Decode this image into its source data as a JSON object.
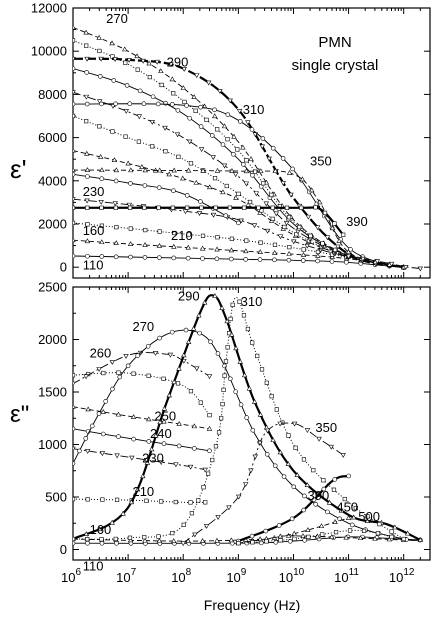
{
  "chart_data": [
    {
      "panel": "upper",
      "type": "line",
      "ylabel": "ε'",
      "xscale": "log",
      "xlim": [
        1000000,
        3000000000000
      ],
      "ylim": [
        -500,
        12000
      ],
      "yticks": [
        0,
        2000,
        4000,
        6000,
        8000,
        10000,
        12000
      ],
      "ytick_labels": [
        "0",
        "2000",
        "4000",
        "6000",
        "8000",
        "10000",
        "12000"
      ],
      "annotation": [
        "PMN",
        "single crystal"
      ],
      "series": [
        {
          "name": "110",
          "label_pos": [
            1500000.0,
            -100
          ],
          "points": [
            [
              1000000.0,
              520
            ],
            [
              10000000.0,
              470
            ],
            [
              100000000.0,
              420
            ],
            [
              1000000000.0,
              370
            ],
            [
              10000000000.0,
              320
            ],
            [
              100000000000.0,
              220
            ],
            [
              1000000000000.0,
              -20
            ]
          ]
        },
        {
          "name": "160",
          "label_pos": [
            1500000.0,
            1500
          ],
          "points": [
            [
              1000000.0,
              1250
            ],
            [
              10000000.0,
              1080
            ],
            [
              100000000.0,
              920
            ],
            [
              1000000000.0,
              760
            ],
            [
              10000000000.0,
              600
            ],
            [
              100000000000.0,
              390
            ],
            [
              1000000000000.0,
              0
            ]
          ]
        },
        {
          "name": "210",
          "label_pos": [
            60000000.0,
            1250
          ],
          "points": [
            [
              1000000.0,
              2050
            ],
            [
              10000000.0,
              1800
            ],
            [
              100000000.0,
              1540
            ],
            [
              1000000000.0,
              1280
            ],
            [
              10000000000.0,
              900
            ],
            [
              100000000000.0,
              450
            ],
            [
              1000000000000.0,
              0
            ]
          ]
        },
        {
          "name": "230",
          "label_pos": [
            1500000.0,
            3300
          ],
          "points": [
            [
              1000000.0,
              3150
            ],
            [
              10000000.0,
              2900
            ],
            [
              100000000.0,
              2600
            ],
            [
              1000000000.0,
              2200
            ],
            [
              10000000000.0,
              1200
            ],
            [
              100000000000.0,
              470
            ],
            [
              1000000000000.0,
              0
            ]
          ]
        },
        {
          "name": "",
          "points": [
            [
              1000000.0,
              4300
            ],
            [
              10000000.0,
              3900
            ],
            [
              100000000.0,
              3400
            ],
            [
              1000000000.0,
              2050
            ]
          ]
        },
        {
          "name": "",
          "points": [
            [
              1000000.0,
              5400
            ],
            [
              10000000.0,
              4800
            ],
            [
              100000000.0,
              4100
            ],
            [
              1000000000.0,
              3150
            ],
            [
              10000000000.0,
              1500
            ],
            [
              100000000000.0,
              480
            ],
            [
              1000000000000.0,
              0
            ]
          ]
        },
        {
          "name": "",
          "points": [
            [
              1000000.0,
              7000
            ],
            [
              10000000.0,
              6000
            ],
            [
              100000000.0,
              5000
            ],
            [
              1000000000.0,
              3400
            ],
            [
              10000000000.0,
              1600
            ],
            [
              100000000000.0,
              480
            ],
            [
              1000000000000.0,
              0
            ]
          ]
        },
        {
          "name": "",
          "points": [
            [
              1000000.0,
              8100
            ],
            [
              10000000.0,
              7200
            ],
            [
              100000000.0,
              6000
            ],
            [
              1000000000.0,
              4200
            ],
            [
              10000000000.0,
              1800
            ],
            [
              100000000000.0,
              500
            ],
            [
              1000000000000.0,
              0
            ]
          ]
        },
        {
          "name": "",
          "points": [
            [
              1000000.0,
              9200
            ],
            [
              10000000.0,
              8400
            ],
            [
              100000000.0,
              7100
            ],
            [
              1000000000.0,
              5000
            ],
            [
              10000000000.0,
              2000
            ],
            [
              100000000000.0,
              520
            ],
            [
              1000000000000.0,
              0
            ]
          ]
        },
        {
          "name": "270",
          "label_pos": [
            4000000.0,
            11300
          ],
          "points": [
            [
              1000000.0,
              11100
            ],
            [
              10000000.0,
              10000
            ],
            [
              100000000.0,
              8300
            ],
            [
              1000000000.0,
              5800
            ],
            [
              10000000000.0,
              2200
            ],
            [
              100000000000.0,
              540
            ],
            [
              1000000000000.0,
              0
            ]
          ]
        },
        {
          "name": "",
          "points": [
            [
              1000000.0,
              10500
            ],
            [
              10000000.0,
              9400
            ],
            [
              100000000.0,
              7700
            ],
            [
              1000000000.0,
              5400
            ],
            [
              10000000000.0,
              2100
            ],
            [
              100000000000.0,
              530
            ],
            [
              1000000000000.0,
              0
            ]
          ]
        },
        {
          "name": "290",
          "label_pos": [
            50000000.0,
            9300
          ],
          "points": [
            [
              1000000.0,
              9650
            ],
            [
              10000000.0,
              9600
            ],
            [
              100000000.0,
              9200
            ],
            [
              1000000000.0,
              7300
            ],
            [
              10000000000.0,
              3200
            ],
            [
              100000000000.0,
              600
            ],
            [
              1000000000000.0,
              0
            ]
          ]
        },
        {
          "name": "310",
          "label_pos": [
            1200000000.0,
            7100
          ],
          "points": [
            [
              1000000.0,
              7550
            ],
            [
              100000000.0,
              7500
            ],
            [
              1000000000.0,
              6800
            ],
            [
              10000000000.0,
              4500
            ],
            [
              100000000000.0,
              900
            ],
            [
              1000000000000.0,
              0
            ]
          ]
        },
        {
          "name": "350",
          "label_pos": [
            20000000000.0,
            4700
          ],
          "points": [
            [
              1000000.0,
              4500
            ],
            [
              1000000000.0,
              4450
            ],
            [
              10000000000.0,
              4300
            ],
            [
              30000000000.0,
              3000
            ],
            [
              100000000000.0,
              700
            ],
            [
              1000000000000.0,
              0
            ]
          ]
        },
        {
          "name": "390",
          "label_pos": [
            90000000000.0,
            1900
          ],
          "points": [
            [
              1000000.0,
              2750
            ],
            [
              10000000000.0,
              2750
            ],
            [
              30000000000.0,
              2700
            ],
            [
              80000000000.0,
              1500
            ]
          ]
        },
        {
          "name": "",
          "points": [
            [
              100000000000.0,
              500
            ],
            [
              500000000000.0,
              200
            ],
            [
              1000000000000.0,
              30
            ],
            [
              2000000000000.0,
              -60
            ]
          ]
        }
      ]
    },
    {
      "panel": "lower",
      "type": "line",
      "ylabel": "ε\"",
      "xlabel": "Frequency  (Hz)",
      "xscale": "log",
      "xlim": [
        1000000,
        3000000000000
      ],
      "ylim": [
        -100,
        2500
      ],
      "xticks": [
        1000000,
        10000000,
        100000000,
        1000000000,
        10000000000,
        100000000000,
        1000000000000
      ],
      "xtick_labels": [
        [
          "10",
          "6"
        ],
        [
          "10",
          "7"
        ],
        [
          "10",
          "8"
        ],
        [
          "10",
          "9"
        ],
        [
          "10",
          "10"
        ],
        [
          "10",
          "11"
        ],
        [
          "10",
          "12"
        ]
      ],
      "yticks": [
        0,
        500,
        1000,
        1500,
        2000,
        2500
      ],
      "ytick_labels": [
        "0",
        "500",
        "1000",
        "1500",
        "2000",
        "2500"
      ],
      "series": [
        {
          "name": "110",
          "label_pos": [
            1500000.0,
            -200
          ],
          "points": [
            [
              1000000.0,
              60
            ],
            [
              1000000000.0,
              60
            ],
            [
              10000000000.0,
              80
            ],
            [
              100000000000.0,
              120
            ],
            [
              800000000000.0,
              100
            ],
            [
              2000000000000.0,
              90
            ]
          ]
        },
        {
          "name": "160",
          "label_pos": [
            2000000.0,
            150
          ],
          "points": [
            [
              1000000.0,
              100
            ],
            [
              100000000.0,
              80
            ],
            [
              3000000000.0,
              100
            ],
            [
              10000000000.0,
              130
            ],
            [
              1000000000000.0,
              90
            ]
          ]
        },
        {
          "name": "210",
          "label_pos": [
            12000000.0,
            510
          ],
          "points": [
            [
              1000000.0,
              480
            ],
            [
              10000000.0,
              470
            ],
            [
              100000000.0,
              450
            ],
            [
              250000000.0,
              450
            ]
          ]
        },
        {
          "name": "230",
          "label_pos": [
            18000000.0,
            830
          ],
          "points": [
            [
              1000000.0,
              960
            ],
            [
              10000000.0,
              880
            ],
            [
              100000000.0,
              800
            ],
            [
              250000000.0,
              760
            ]
          ]
        },
        {
          "name": "240",
          "label_pos": [
            25000000.0,
            1060
          ],
          "points": [
            [
              1000000.0,
              1150
            ],
            [
              10000000.0,
              1060
            ],
            [
              100000000.0,
              980
            ],
            [
              300000000.0,
              940
            ]
          ]
        },
        {
          "name": "250",
          "label_pos": [
            30000000.0,
            1230
          ],
          "points": [
            [
              1000000.0,
              1360
            ],
            [
              10000000.0,
              1270
            ],
            [
              100000000.0,
              1190
            ],
            [
              300000000.0,
              1150
            ]
          ]
        },
        {
          "name": "260",
          "label_pos": [
            2000000.0,
            1830
          ],
          "points": [
            [
              1000000.0,
              1660
            ],
            [
              10000000.0,
              1680
            ],
            [
              100000000.0,
              1560
            ],
            [
              300000000.0,
              1280
            ]
          ]
        },
        {
          "name": "",
          "points": [
            [
              1000000.0,
              1580
            ],
            [
              10000000.0,
              1850
            ],
            [
              50000000.0,
              1860
            ],
            [
              100000000.0,
              1800
            ],
            [
              300000000.0,
              1650
            ]
          ]
        },
        {
          "name": "270",
          "label_pos": [
            12000000.0,
            2080
          ],
          "points": [
            [
              1000000.0,
              820
            ],
            [
              3000000.0,
              1300
            ],
            [
              10000000.0,
              1750
            ],
            [
              50000000.0,
              2050
            ],
            [
              200000000.0,
              2060
            ],
            [
              500000000.0,
              1800
            ],
            [
              2000000000.0,
              1100
            ],
            [
              10000000000.0,
              600
            ],
            [
              100000000000.0,
              250
            ],
            [
              1000000000000.0,
              100
            ],
            [
              2000000000000.0,
              90
            ]
          ]
        },
        {
          "name": "290",
          "label_pos": [
            80000000.0,
            2370
          ],
          "points": [
            [
              1000000.0,
              100
            ],
            [
              10000000.0,
              400
            ],
            [
              50000000.0,
              1400
            ],
            [
              200000000.0,
              2250
            ],
            [
              350000000.0,
              2420
            ],
            [
              600000000.0,
              2200
            ],
            [
              2000000000.0,
              1400
            ],
            [
              10000000000.0,
              750
            ],
            [
              100000000000.0,
              330
            ],
            [
              500000000000.0,
              240
            ],
            [
              2000000000000.0,
              90
            ]
          ]
        },
        {
          "name": "310",
          "label_pos": [
            1100000000.0,
            2320
          ],
          "points": [
            [
              1000000.0,
              100
            ],
            [
              10000000.0,
              110
            ],
            [
              100000000.0,
              230
            ],
            [
              400000000.0,
              1000
            ],
            [
              600000000.0,
              1800
            ],
            [
              900000000.0,
              2400
            ],
            [
              2000000000.0,
              1900
            ],
            [
              10000000000.0,
              1000
            ],
            [
              100000000000.0,
              450
            ],
            [
              1000000000000.0,
              100
            ]
          ]
        },
        {
          "name": "350",
          "label_pos": [
            25000000000.0,
            1120
          ],
          "points": [
            [
              100000000.0,
              60
            ],
            [
              1000000000.0,
              500
            ],
            [
              3000000000.0,
              1100
            ],
            [
              10000000000.0,
              1200
            ],
            [
              30000000000.0,
              1050
            ],
            [
              80000000000.0,
              900
            ]
          ]
        },
        {
          "name": "390",
          "label_pos": [
            18000000000.0,
            470
          ],
          "points": [
            [
              1000000000.0,
              80
            ],
            [
              10000000000.0,
              300
            ],
            [
              50000000000.0,
              650
            ],
            [
              100000000000.0,
              700
            ]
          ]
        },
        {
          "name": "450",
          "label_pos": [
            60000000000.0,
            360
          ],
          "points": [
            [
              1000000000.0,
              60
            ],
            [
              10000000000.0,
              150
            ],
            [
              100000000000.0,
              300
            ]
          ]
        },
        {
          "name": "500",
          "label_pos": [
            150000000000.0,
            270
          ],
          "points": [
            [
              1000000000.0,
              60
            ],
            [
              10000000000.0,
              100
            ],
            [
              100000000000.0,
              180
            ],
            [
              300000000000.0,
              160
            ],
            [
              600000000000.0,
              120
            ]
          ]
        }
      ]
    }
  ]
}
